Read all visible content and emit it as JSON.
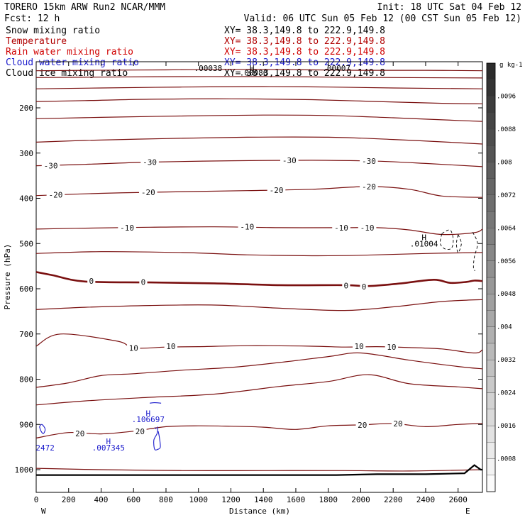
{
  "header": {
    "run_title": "TORERO  15km ARW   Run2     NCAR/MMM",
    "init": "Init: 18 UTC Sat 04 Feb 12",
    "fcst": "Fcst:  12 h",
    "valid": "Valid: 06 UTC Sun 05 Feb 12 (00 CST Sun 05 Feb 12)"
  },
  "fields": [
    {
      "name": "Snow mixing ratio",
      "xy": "XY=  38.3,149.8 to 222.9,149.8",
      "color": "#000000"
    },
    {
      "name": "Temperature",
      "xy": "XY=  38.3,149.8 to 222.9,149.8",
      "color": "#b00000"
    },
    {
      "name": "Rain water mixing ratio",
      "xy": "XY=  38.3,149.8 to 222.9,149.8",
      "color": "#d00000"
    },
    {
      "name": "Cloud water mixing ratio",
      "xy": "XY=  38.3,149.8 to 222.9,149.8",
      "color": "#1a1acc"
    },
    {
      "name": "Cloud ice mixing ratio",
      "xy": "XY=  38.3,149.8 to 222.9,149.8",
      "color": "#000000"
    }
  ],
  "colors": {
    "temp": "#7a1010",
    "cloud_water": "#1a1acc",
    "terrain": "#000000"
  },
  "chart_data": {
    "type": "cross-section contour",
    "xlabel": "Distance (km)",
    "ylabel": "Pressure (hPa)",
    "xlim": [
      0,
      2750
    ],
    "ylim": [
      1030,
      100
    ],
    "x_ticks": [
      "0",
      "200",
      "400",
      "600",
      "800",
      "1000",
      "1200",
      "1400",
      "1600",
      "1800",
      "2000",
      "2200",
      "2400",
      "2600"
    ],
    "x_tick_values": [
      0,
      200,
      400,
      600,
      800,
      1000,
      1200,
      1400,
      1600,
      1800,
      2000,
      2200,
      2400,
      2600
    ],
    "y_ticks": [
      "200",
      "300",
      "400",
      "500",
      "600",
      "700",
      "800",
      "900",
      "1000"
    ],
    "y_tick_values": [
      200,
      300,
      400,
      500,
      600,
      700,
      800,
      900,
      1000
    ],
    "west_label": "W",
    "east_label": "E",
    "colorbar": {
      "units": "g kg-1",
      "labels": [
        ".0096",
        ".0088",
        ".008",
        ".0072",
        ".0064",
        ".0056",
        ".0048",
        ".004",
        ".0032",
        ".0024",
        ".0016",
        ".0008"
      ],
      "values": [
        0.0096,
        0.0088,
        0.008,
        0.0072,
        0.0064,
        0.0056,
        0.0048,
        0.004,
        0.0032,
        0.0024,
        0.0016,
        0.0008
      ],
      "vmin": 0,
      "vmax": 0.0104
    },
    "contour_labels": [
      {
        "text": "-30",
        "x": 90,
        "p": 328
      },
      {
        "text": "-30",
        "x": 700,
        "p": 320
      },
      {
        "text": "-30",
        "x": 1560,
        "p": 316
      },
      {
        "text": "-30",
        "x": 2050,
        "p": 318
      },
      {
        "text": "-20",
        "x": 120,
        "p": 392
      },
      {
        "text": "-20",
        "x": 690,
        "p": 387
      },
      {
        "text": "-20",
        "x": 1480,
        "p": 382
      },
      {
        "text": "-20",
        "x": 2050,
        "p": 374
      },
      {
        "text": "-10",
        "x": 560,
        "p": 465
      },
      {
        "text": "-10",
        "x": 1300,
        "p": 463
      },
      {
        "text": "-10",
        "x": 1880,
        "p": 465
      },
      {
        "text": "-10",
        "x": 2040,
        "p": 465
      },
      {
        "text": "0",
        "x": 340,
        "p": 583
      },
      {
        "text": "0",
        "x": 660,
        "p": 585
      },
      {
        "text": "0",
        "x": 1910,
        "p": 593
      },
      {
        "text": "0",
        "x": 2020,
        "p": 595
      },
      {
        "text": "10",
        "x": 600,
        "p": 731
      },
      {
        "text": "10",
        "x": 830,
        "p": 727
      },
      {
        "text": "10",
        "x": 1990,
        "p": 727
      },
      {
        "text": "10",
        "x": 2190,
        "p": 729
      },
      {
        "text": "20",
        "x": 270,
        "p": 920
      },
      {
        "text": "20",
        "x": 640,
        "p": 915
      },
      {
        "text": "20",
        "x": 2010,
        "p": 901
      },
      {
        "text": "20",
        "x": 2230,
        "p": 898
      }
    ],
    "extrema_labels": [
      {
        "text": "H",
        "x": 690,
        "p": 875,
        "color": "#1a1acc"
      },
      {
        "text": ".106697",
        "x": 690,
        "p": 889,
        "color": "#1a1acc"
      },
      {
        "text": "H",
        "x": 445,
        "p": 937,
        "color": "#1a1acc"
      },
      {
        "text": ".007345",
        "x": 445,
        "p": 951,
        "color": "#1a1acc"
      },
      {
        "text": "2472",
        "x": 55,
        "p": 951,
        "color": "#1a1acc"
      },
      {
        "text": "H",
        "x": 2390,
        "p": 486,
        "color": "#000000"
      },
      {
        "text": ".01004",
        "x": 2390,
        "p": 500,
        "color": "#000000"
      },
      {
        "text": ".00038",
        "x": 1060,
        "p": 112,
        "color": "#000000"
      },
      {
        "text": ".00007",
        "x": 1850,
        "p": 112,
        "color": "#000000"
      },
      {
        "text": ".00080",
        "x": 1340,
        "p": 122,
        "color": "#000000"
      },
      {
        "text": "H",
        "x": 1330,
        "p": 112,
        "color": "#000000"
      }
    ],
    "temperature_contours": [
      {
        "level": -60,
        "pts": [
          [
            0,
            118
          ],
          [
            300,
            117
          ],
          [
            800,
            116
          ],
          [
            1300,
            115
          ],
          [
            1700,
            116
          ],
          [
            2000,
            117
          ],
          [
            2400,
            117
          ],
          [
            2750,
            118
          ]
        ]
      },
      {
        "level": -55,
        "pts": [
          [
            0,
            133
          ],
          [
            400,
            132
          ],
          [
            900,
            131
          ],
          [
            1400,
            131
          ],
          [
            1800,
            132
          ],
          [
            2200,
            133
          ],
          [
            2750,
            134
          ]
        ]
      },
      {
        "level": -50,
        "pts": [
          [
            0,
            158
          ],
          [
            400,
            156
          ],
          [
            900,
            154
          ],
          [
            1400,
            153
          ],
          [
            1800,
            154
          ],
          [
            2200,
            156
          ],
          [
            2750,
            158
          ]
        ]
      },
      {
        "level": -45,
        "pts": [
          [
            0,
            186
          ],
          [
            300,
            184
          ],
          [
            700,
            181
          ],
          [
            1200,
            180
          ],
          [
            1700,
            182
          ],
          [
            2100,
            186
          ],
          [
            2500,
            190
          ],
          [
            2750,
            191
          ]
        ]
      },
      {
        "level": -40,
        "pts": [
          [
            0,
            224
          ],
          [
            400,
            221
          ],
          [
            900,
            218
          ],
          [
            1400,
            216
          ],
          [
            1800,
            217
          ],
          [
            2200,
            222
          ],
          [
            2600,
            228
          ],
          [
            2750,
            230
          ]
        ]
      },
      {
        "level": -35,
        "pts": [
          [
            0,
            276
          ],
          [
            300,
            272
          ],
          [
            800,
            268
          ],
          [
            1300,
            265
          ],
          [
            1800,
            265
          ],
          [
            2200,
            270
          ],
          [
            2600,
            277
          ],
          [
            2750,
            280
          ]
        ]
      },
      {
        "level": -30,
        "pts": [
          [
            0,
            328
          ],
          [
            300,
            325
          ],
          [
            700,
            320
          ],
          [
            1200,
            317
          ],
          [
            1700,
            316
          ],
          [
            2100,
            318
          ],
          [
            2400,
            323
          ],
          [
            2750,
            330
          ]
        ]
      },
      {
        "level": -20,
        "pts": [
          [
            0,
            394
          ],
          [
            400,
            389
          ],
          [
            800,
            386
          ],
          [
            1300,
            383
          ],
          [
            1700,
            380
          ],
          [
            2050,
            374
          ],
          [
            2300,
            380
          ],
          [
            2500,
            395
          ],
          [
            2750,
            398
          ]
        ]
      },
      {
        "level": -10,
        "pts": [
          [
            0,
            468
          ],
          [
            300,
            466
          ],
          [
            700,
            464
          ],
          [
            1100,
            463
          ],
          [
            1500,
            465
          ],
          [
            1900,
            465
          ],
          [
            2100,
            465
          ],
          [
            2300,
            470
          ],
          [
            2500,
            480
          ],
          [
            2700,
            476
          ],
          [
            2750,
            468
          ]
        ]
      },
      {
        "level": -5,
        "pts": [
          [
            0,
            522
          ],
          [
            400,
            518
          ],
          [
            900,
            520
          ],
          [
            1300,
            525
          ],
          [
            1700,
            527
          ],
          [
            2000,
            526
          ],
          [
            2400,
            522
          ],
          [
            2750,
            520
          ]
        ]
      },
      {
        "level": 0,
        "pts": [
          [
            0,
            563
          ],
          [
            100,
            570
          ],
          [
            300,
            584
          ],
          [
            700,
            586
          ],
          [
            1100,
            588
          ],
          [
            1500,
            592
          ],
          [
            1900,
            592
          ],
          [
            2050,
            594
          ],
          [
            2250,
            588
          ],
          [
            2450,
            580
          ],
          [
            2550,
            587
          ],
          [
            2650,
            585
          ],
          [
            2700,
            582
          ],
          [
            2750,
            583
          ]
        ]
      },
      {
        "level": 5,
        "pts": [
          [
            0,
            646
          ],
          [
            300,
            641
          ],
          [
            700,
            637
          ],
          [
            1100,
            636
          ],
          [
            1500,
            643
          ],
          [
            1900,
            648
          ],
          [
            2200,
            640
          ],
          [
            2450,
            630
          ],
          [
            2600,
            626
          ],
          [
            2750,
            624
          ]
        ]
      },
      {
        "level": 10,
        "pts": [
          [
            0,
            727
          ],
          [
            150,
            700
          ],
          [
            500,
            716
          ],
          [
            600,
            731
          ],
          [
            800,
            729
          ],
          [
            1000,
            728
          ],
          [
            1300,
            726
          ],
          [
            1700,
            727
          ],
          [
            1900,
            729
          ],
          [
            2100,
            728
          ],
          [
            2300,
            730
          ],
          [
            2500,
            733
          ],
          [
            2700,
            742
          ],
          [
            2750,
            735
          ]
        ]
      },
      {
        "level": 15,
        "pts": [
          [
            0,
            818
          ],
          [
            200,
            808
          ],
          [
            400,
            792
          ],
          [
            600,
            788
          ],
          [
            900,
            780
          ],
          [
            1200,
            774
          ],
          [
            1500,
            763
          ],
          [
            1800,
            750
          ],
          [
            2000,
            742
          ],
          [
            2300,
            758
          ],
          [
            2600,
            772
          ],
          [
            2750,
            777
          ]
        ]
      },
      {
        "level": 18,
        "pts": [
          [
            0,
            857
          ],
          [
            300,
            848
          ],
          [
            700,
            840
          ],
          [
            1100,
            833
          ],
          [
            1500,
            816
          ],
          [
            1800,
            805
          ],
          [
            2050,
            790
          ],
          [
            2300,
            810
          ],
          [
            2600,
            817
          ],
          [
            2750,
            821
          ]
        ]
      },
      {
        "level": 20,
        "pts": [
          [
            0,
            930
          ],
          [
            200,
            918
          ],
          [
            400,
            921
          ],
          [
            600,
            915
          ],
          [
            800,
            905
          ],
          [
            1000,
            903
          ],
          [
            1200,
            904
          ],
          [
            1400,
            906
          ],
          [
            1600,
            911
          ],
          [
            1800,
            903
          ],
          [
            2000,
            901
          ],
          [
            2200,
            898
          ],
          [
            2400,
            905
          ],
          [
            2600,
            900
          ],
          [
            2750,
            898
          ]
        ]
      },
      {
        "level": 25,
        "pts": [
          [
            0,
            997
          ],
          [
            400,
            1000
          ],
          [
            900,
            1002
          ],
          [
            1400,
            1002
          ],
          [
            1900,
            1002
          ],
          [
            2300,
            1003
          ],
          [
            2750,
            1000
          ]
        ]
      }
    ],
    "cloud_water_contours": [
      {
        "pts": [
          [
            20,
            905
          ],
          [
            35,
            900
          ],
          [
            55,
            910
          ],
          [
            45,
            920
          ],
          [
            30,
            915
          ],
          [
            20,
            905
          ]
        ]
      },
      {
        "pts": [
          [
            750,
            905
          ],
          [
            745,
            920
          ],
          [
            725,
            935
          ],
          [
            730,
            955
          ],
          [
            750,
            955
          ],
          [
            765,
            950
          ],
          [
            760,
            930
          ],
          [
            752,
            915
          ]
        ]
      },
      {
        "pts": [
          [
            730,
            907
          ],
          [
            740,
            910
          ]
        ]
      },
      {
        "pts": [
          [
            700,
            853
          ],
          [
            730,
            852
          ],
          [
            770,
            853
          ]
        ]
      }
    ],
    "cloud_ice_contours": [
      {
        "pts": [
          [
            2500,
            478
          ],
          [
            2550,
            470
          ],
          [
            2570,
            490
          ],
          [
            2560,
            510
          ],
          [
            2520,
            512
          ],
          [
            2490,
            500
          ],
          [
            2500,
            478
          ]
        ],
        "dash": true
      },
      {
        "pts": [
          [
            2600,
            480
          ],
          [
            2620,
            500
          ],
          [
            2600,
            520
          ],
          [
            2590,
            500
          ],
          [
            2600,
            480
          ]
        ],
        "dash": true
      },
      {
        "pts": [
          [
            2690,
            475
          ],
          [
            2720,
            500
          ],
          [
            2700,
            530
          ],
          [
            2695,
            555
          ],
          [
            2705,
            560
          ]
        ],
        "dash": true
      }
    ],
    "terrain": [
      [
        0,
        1012
      ],
      [
        500,
        1012
      ],
      [
        1000,
        1012
      ],
      [
        1500,
        1012
      ],
      [
        1850,
        1012
      ],
      [
        2100,
        1010
      ],
      [
        2400,
        1010
      ],
      [
        2640,
        1008
      ],
      [
        2700,
        990
      ],
      [
        2740,
        1000
      ],
      [
        2750,
        1000
      ]
    ]
  }
}
